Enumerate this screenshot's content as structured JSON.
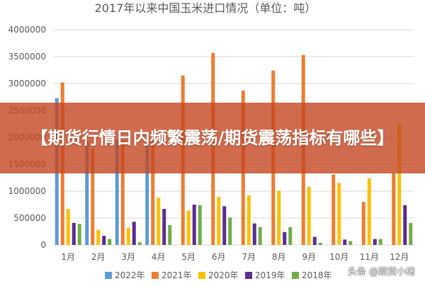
{
  "chart_data": {
    "type": "bar",
    "title": "2017年以来中国玉米进口情况（单位：吨）",
    "categories": [
      "1月",
      "2月",
      "3月",
      "4月",
      "5月",
      "6月",
      "7月",
      "8月",
      "9月",
      "10月",
      "11月",
      "12月"
    ],
    "ylim": [
      0,
      4000000
    ],
    "yticks": [
      0,
      500000,
      1000000,
      1500000,
      2000000,
      2500000,
      3000000,
      3500000,
      4000000
    ],
    "ytick_labels": [
      "0",
      "500000",
      "1000000",
      "1500000",
      "2000000",
      "2500000",
      "3000000",
      "3500000",
      "4000000"
    ],
    "grid": true,
    "legend_position": "bottom",
    "series": [
      {
        "name": "2022年",
        "color": "#5B9BD5",
        "values": [
          2730000,
          1930000,
          1950000,
          1950000,
          null,
          null,
          null,
          null,
          null,
          null,
          null,
          null
        ]
      },
      {
        "name": "2021年",
        "color": "#ED7D31",
        "values": [
          3020000,
          1790000,
          1940000,
          1980000,
          3150000,
          3570000,
          2870000,
          3240000,
          3530000,
          1310000,
          800000,
          1340000
        ]
      },
      {
        "name": "2020年",
        "color": "#FFC000",
        "values": [
          670000,
          280000,
          320000,
          880000,
          640000,
          890000,
          920000,
          1010000,
          1080000,
          1150000,
          1240000,
          2250000
        ]
      },
      {
        "name": "2019年",
        "color": "#5B2C8F",
        "values": [
          410000,
          170000,
          430000,
          670000,
          750000,
          720000,
          400000,
          240000,
          150000,
          100000,
          110000,
          740000
        ]
      },
      {
        "name": "2018年",
        "color": "#70AD47",
        "values": [
          390000,
          110000,
          50000,
          370000,
          740000,
          510000,
          330000,
          330000,
          40000,
          70000,
          110000,
          410000
        ]
      }
    ]
  },
  "overlay": {
    "headline": "【期货行情日内频繁震荡/期货震荡指标有哪些】",
    "watermark": "头条 @期货小楮"
  }
}
